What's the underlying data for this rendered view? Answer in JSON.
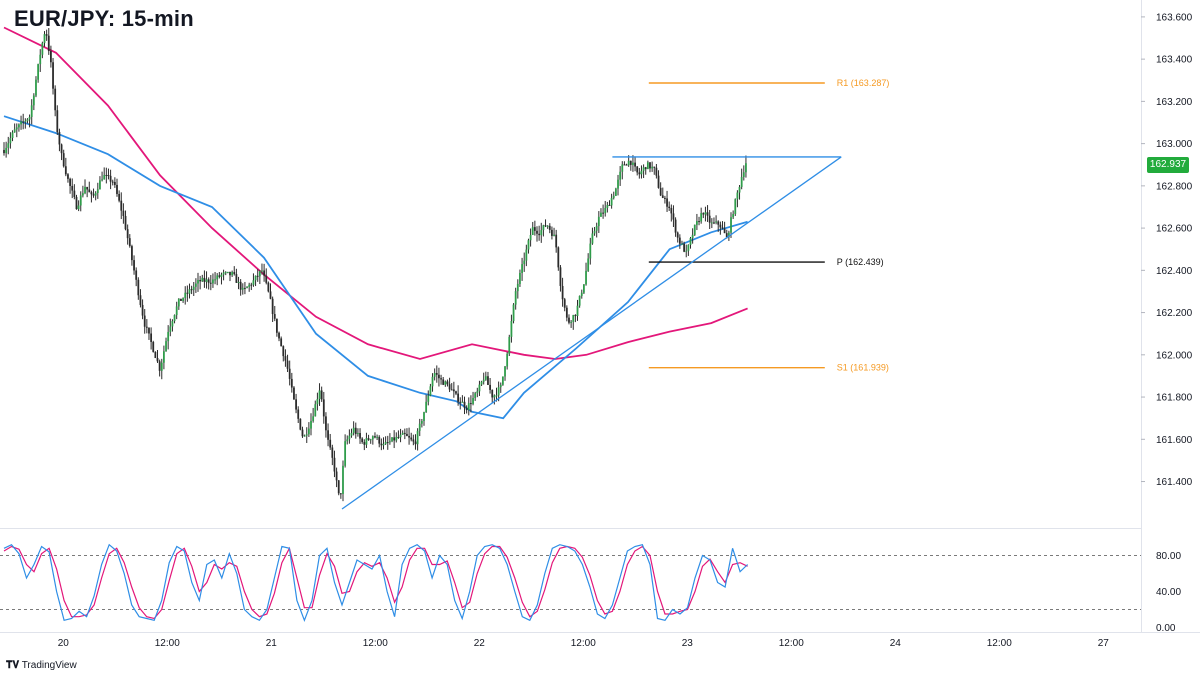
{
  "title": "EUR/JPY: 15-min",
  "brand": "TradingView",
  "current_price": "162.937",
  "colors": {
    "up": "#26a69a",
    "down": "#ef5350",
    "candle": "#2b2b2b",
    "ema_fast": "#2f8ee6",
    "ema_slow": "#e3177a",
    "level_orange": "#f59a23",
    "pivot": "#111111",
    "stoch_k": "#2f8ee6",
    "stoch_d": "#e3177a",
    "badge": "#22ab3c"
  },
  "chart_data": [
    {
      "type": "line",
      "title": "EUR/JPY: 15-min",
      "ylim": [
        161.18,
        163.68
      ],
      "y_ticks": [
        "163.600",
        "163.400",
        "163.200",
        "163.000",
        "162.800",
        "162.600",
        "162.400",
        "162.200",
        "162.000",
        "161.800",
        "161.600",
        "161.400"
      ],
      "x_ticks": [
        "20",
        "12:00",
        "21",
        "12:00",
        "22",
        "12:00",
        "23",
        "12:00",
        "24",
        "12:00",
        "27"
      ],
      "x_domain": [
        0,
        10.6
      ],
      "price_path": [
        [
          0.0,
          162.97
        ],
        [
          0.1,
          163.06
        ],
        [
          0.18,
          163.1
        ],
        [
          0.25,
          163.13
        ],
        [
          0.3,
          163.28
        ],
        [
          0.35,
          163.43
        ],
        [
          0.4,
          163.55
        ],
        [
          0.45,
          163.38
        ],
        [
          0.5,
          163.1
        ],
        [
          0.55,
          162.95
        ],
        [
          0.62,
          162.82
        ],
        [
          0.7,
          162.7
        ],
        [
          0.78,
          162.8
        ],
        [
          0.85,
          162.74
        ],
        [
          0.95,
          162.85
        ],
        [
          1.05,
          162.82
        ],
        [
          1.15,
          162.65
        ],
        [
          1.25,
          162.4
        ],
        [
          1.35,
          162.15
        ],
        [
          1.42,
          162.05
        ],
        [
          1.5,
          161.93
        ],
        [
          1.58,
          162.12
        ],
        [
          1.68,
          162.25
        ],
        [
          1.78,
          162.3
        ],
        [
          1.88,
          162.35
        ],
        [
          2.0,
          162.35
        ],
        [
          2.1,
          162.38
        ],
        [
          2.2,
          162.38
        ],
        [
          2.3,
          162.3
        ],
        [
          2.4,
          162.35
        ],
        [
          2.48,
          162.4
        ],
        [
          2.55,
          162.28
        ],
        [
          2.63,
          162.1
        ],
        [
          2.72,
          161.95
        ],
        [
          2.8,
          161.75
        ],
        [
          2.88,
          161.6
        ],
        [
          2.96,
          161.7
        ],
        [
          3.04,
          161.85
        ],
        [
          3.1,
          161.62
        ],
        [
          3.17,
          161.48
        ],
        [
          3.23,
          161.3
        ],
        [
          3.28,
          161.58
        ],
        [
          3.36,
          161.65
        ],
        [
          3.45,
          161.58
        ],
        [
          3.55,
          161.62
        ],
        [
          3.65,
          161.57
        ],
        [
          3.75,
          161.6
        ],
        [
          3.85,
          161.62
        ],
        [
          3.95,
          161.58
        ],
        [
          4.05,
          161.75
        ],
        [
          4.13,
          161.92
        ],
        [
          4.2,
          161.88
        ],
        [
          4.28,
          161.85
        ],
        [
          4.35,
          161.8
        ],
        [
          4.45,
          161.75
        ],
        [
          4.55,
          161.82
        ],
        [
          4.62,
          161.9
        ],
        [
          4.7,
          161.8
        ],
        [
          4.78,
          161.85
        ],
        [
          4.85,
          162.05
        ],
        [
          4.92,
          162.3
        ],
        [
          5.0,
          162.45
        ],
        [
          5.08,
          162.6
        ],
        [
          5.15,
          162.58
        ],
        [
          5.22,
          162.62
        ],
        [
          5.3,
          162.55
        ],
        [
          5.36,
          162.3
        ],
        [
          5.42,
          162.15
        ],
        [
          5.5,
          162.2
        ],
        [
          5.58,
          162.35
        ],
        [
          5.65,
          162.55
        ],
        [
          5.72,
          162.65
        ],
        [
          5.8,
          162.7
        ],
        [
          5.88,
          162.78
        ],
        [
          5.95,
          162.9
        ],
        [
          6.02,
          162.92
        ],
        [
          6.1,
          162.85
        ],
        [
          6.18,
          162.9
        ],
        [
          6.25,
          162.88
        ],
        [
          6.32,
          162.75
        ],
        [
          6.4,
          162.7
        ],
        [
          6.48,
          162.55
        ],
        [
          6.56,
          162.48
        ],
        [
          6.64,
          162.6
        ],
        [
          6.72,
          162.68
        ],
        [
          6.8,
          162.62
        ],
        [
          6.88,
          162.62
        ],
        [
          6.95,
          162.55
        ],
        [
          7.02,
          162.7
        ],
        [
          7.09,
          162.84
        ],
        [
          7.15,
          162.937
        ]
      ],
      "series": [
        {
          "name": "",
          "role": "ema_slow",
          "points": [
            [
              0.0,
              163.55
            ],
            [
              0.5,
              163.43
            ],
            [
              1.0,
              163.18
            ],
            [
              1.5,
              162.85
            ],
            [
              2.0,
              162.6
            ],
            [
              2.5,
              162.38
            ],
            [
              3.0,
              162.18
            ],
            [
              3.5,
              162.05
            ],
            [
              4.0,
              161.98
            ],
            [
              4.5,
              162.05
            ],
            [
              5.0,
              162.0
            ],
            [
              5.3,
              161.98
            ],
            [
              5.6,
              162.0
            ],
            [
              6.0,
              162.06
            ],
            [
              6.4,
              162.11
            ],
            [
              6.8,
              162.15
            ],
            [
              7.15,
              162.22
            ]
          ]
        },
        {
          "name": "",
          "role": "ema_fast",
          "points": [
            [
              0.0,
              163.13
            ],
            [
              0.5,
              163.05
            ],
            [
              1.0,
              162.95
            ],
            [
              1.5,
              162.8
            ],
            [
              2.0,
              162.7
            ],
            [
              2.5,
              162.46
            ],
            [
              3.0,
              162.1
            ],
            [
              3.5,
              161.9
            ],
            [
              4.0,
              161.82
            ],
            [
              4.35,
              161.78
            ],
            [
              4.5,
              161.73
            ],
            [
              4.8,
              161.7
            ],
            [
              5.0,
              161.82
            ],
            [
              5.5,
              162.03
            ],
            [
              6.0,
              162.25
            ],
            [
              6.4,
              162.5
            ],
            [
              6.8,
              162.58
            ],
            [
              7.15,
              162.63
            ]
          ]
        }
      ],
      "levels": [
        {
          "label": "R1 (163.287)",
          "value": 163.287,
          "x_from": 6.2,
          "x_to": 8.2,
          "role": "level_orange"
        },
        {
          "label": "P (162.439)",
          "value": 162.439,
          "x_from": 6.2,
          "x_to": 8.2,
          "role": "pivot"
        },
        {
          "label": "S1 (161.939)",
          "value": 161.939,
          "x_from": 6.2,
          "x_to": 8.2,
          "role": "level_orange"
        }
      ],
      "trendlines": [
        {
          "from": [
            3.25,
            161.27
          ],
          "to": [
            8.05,
            162.937
          ]
        },
        {
          "from": [
            5.85,
            162.937
          ],
          "to": [
            8.05,
            162.937
          ]
        }
      ]
    },
    {
      "type": "line",
      "indicator": "stochastic",
      "ylim": [
        -5,
        105
      ],
      "y_ticks": [
        "80.00",
        "40.00",
        "0.00"
      ],
      "guides": [
        80,
        20
      ],
      "k": [
        88,
        92,
        82,
        55,
        70,
        90,
        84,
        40,
        8,
        10,
        18,
        12,
        35,
        70,
        92,
        85,
        60,
        25,
        12,
        10,
        8,
        30,
        72,
        90,
        85,
        50,
        30,
        70,
        75,
        55,
        82,
        60,
        20,
        12,
        8,
        20,
        55,
        90,
        88,
        30,
        8,
        30,
        80,
        88,
        50,
        25,
        50,
        75,
        70,
        65,
        80,
        40,
        12,
        70,
        88,
        92,
        85,
        55,
        80,
        70,
        30,
        10,
        40,
        80,
        90,
        92,
        88,
        70,
        40,
        12,
        8,
        25,
        60,
        88,
        92,
        90,
        85,
        70,
        45,
        15,
        10,
        25,
        55,
        85,
        90,
        92,
        70,
        10,
        8,
        20,
        15,
        22,
        55,
        80,
        75,
        50,
        45,
        88,
        62,
        70
      ],
      "d": [
        85,
        90,
        87,
        70,
        62,
        82,
        88,
        65,
        30,
        12,
        12,
        14,
        25,
        55,
        82,
        88,
        72,
        45,
        22,
        12,
        10,
        20,
        52,
        82,
        88,
        68,
        40,
        50,
        70,
        65,
        72,
        68,
        40,
        20,
        12,
        15,
        38,
        72,
        88,
        55,
        22,
        22,
        58,
        82,
        68,
        38,
        40,
        62,
        72,
        68,
        72,
        55,
        28,
        45,
        75,
        88,
        88,
        70,
        70,
        74,
        50,
        22,
        28,
        60,
        82,
        90,
        90,
        78,
        55,
        28,
        12,
        18,
        42,
        72,
        88,
        90,
        88,
        78,
        58,
        30,
        15,
        18,
        40,
        70,
        85,
        90,
        80,
        40,
        15,
        15,
        18,
        20,
        40,
        68,
        76,
        62,
        50,
        70,
        72,
        68
      ]
    }
  ]
}
